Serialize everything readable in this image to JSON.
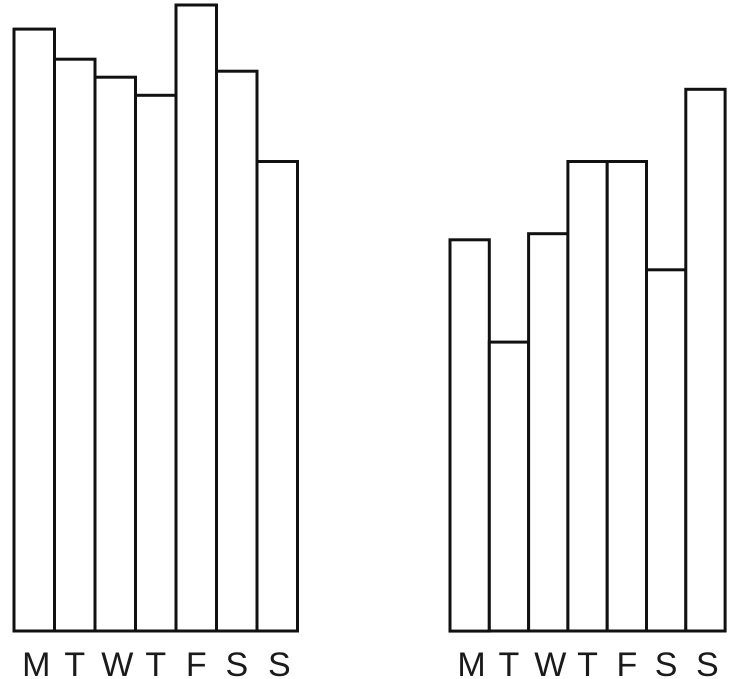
{
  "chart_data": [
    {
      "type": "bar",
      "categories": [
        "M",
        "T",
        "W",
        "T",
        "F",
        "S",
        "S"
      ],
      "values": [
        100,
        95,
        92,
        89,
        104,
        93,
        78
      ],
      "title": "",
      "xlabel": "",
      "ylabel": "",
      "ylim": [
        0,
        104
      ],
      "grid": false,
      "axes_visible": false
    },
    {
      "type": "bar",
      "categories": [
        "M",
        "T",
        "W",
        "T",
        "F",
        "S",
        "S"
      ],
      "values": [
        65,
        48,
        66,
        78,
        78,
        60,
        90
      ],
      "title": "",
      "xlabel": "",
      "ylabel": "",
      "ylim": [
        0,
        104
      ],
      "grid": false,
      "axes_visible": false
    }
  ],
  "colors": {
    "bar_fill": "#ffffff",
    "bar_stroke": "#111111",
    "label": "#1a1a1a"
  }
}
